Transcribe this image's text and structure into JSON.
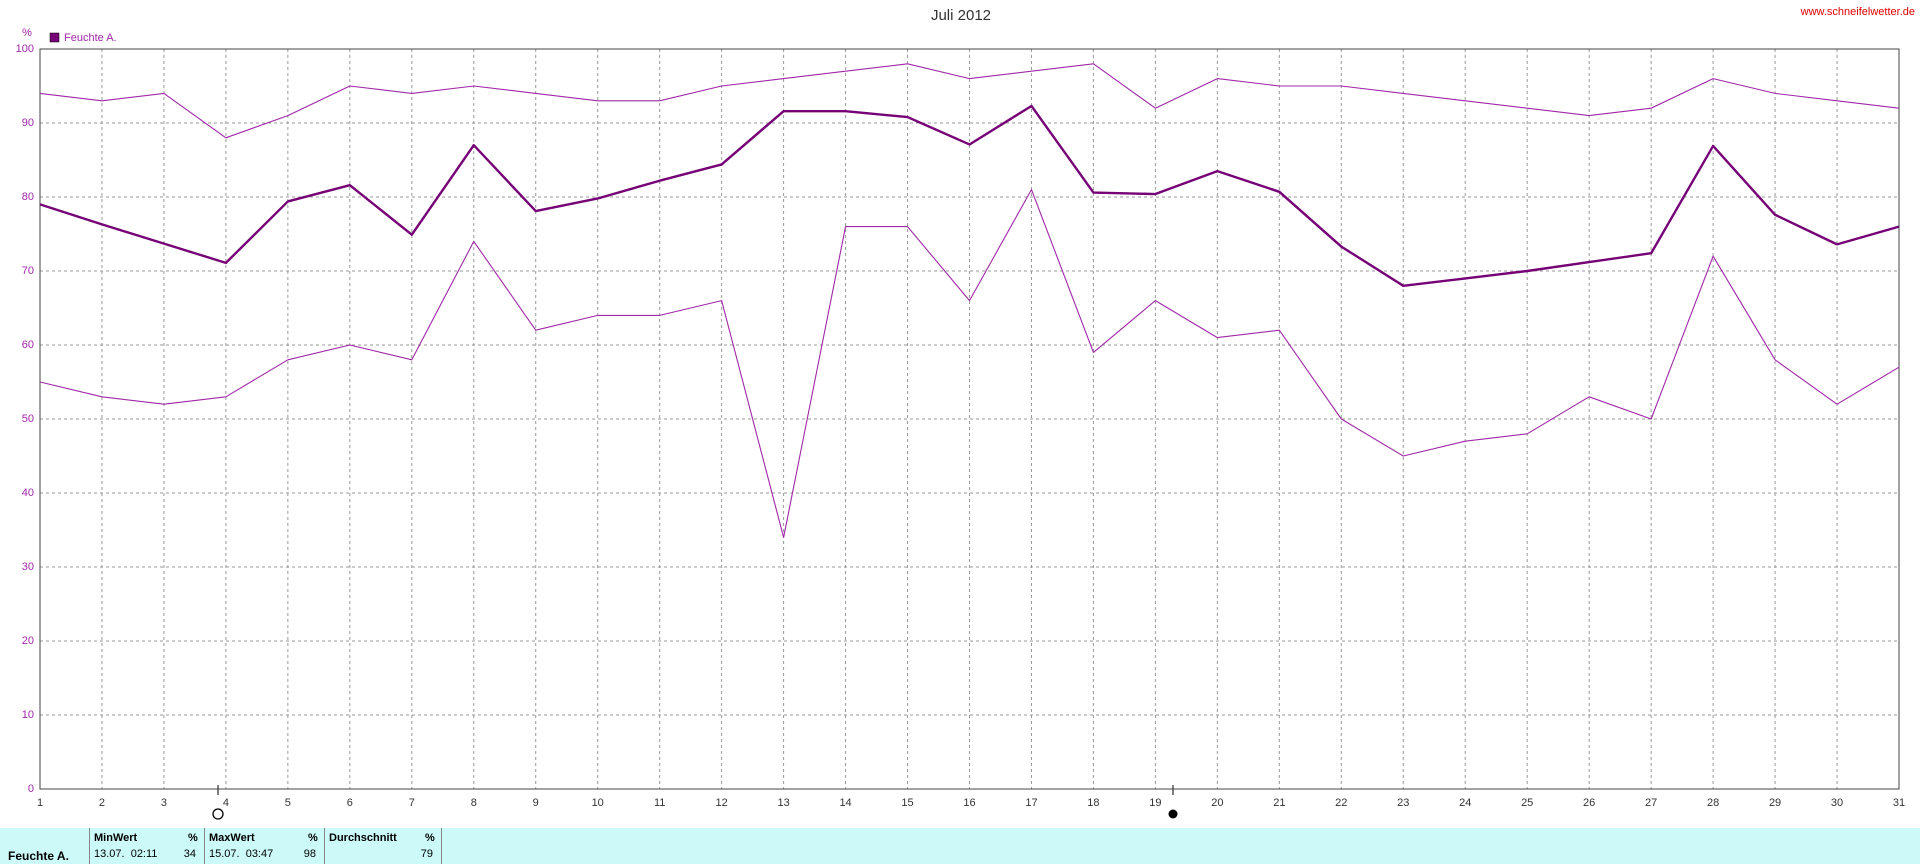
{
  "chart_data": {
    "type": "line",
    "title": "Juli 2012",
    "watermark": "www.schneifelwetter.de",
    "y_label": "%",
    "x": [
      1,
      2,
      3,
      4,
      5,
      6,
      7,
      8,
      9,
      10,
      11,
      12,
      13,
      14,
      15,
      16,
      17,
      18,
      19,
      20,
      21,
      22,
      23,
      24,
      25,
      26,
      27,
      28,
      29,
      30,
      31
    ],
    "xlim": [
      1,
      31
    ],
    "ylim": [
      0,
      100
    ],
    "yticks": [
      0,
      10,
      20,
      30,
      40,
      50,
      60,
      70,
      80,
      90,
      100
    ],
    "grid": true,
    "legend": "top-left",
    "series": [
      {
        "name": "Feuchte A.",
        "color": "#760076",
        "width": 2.4,
        "values": [
          79,
          76.3,
          73.7,
          71.1,
          79.4,
          81.6,
          74.9,
          87,
          78.1,
          79.8,
          82.2,
          84.4,
          91.6,
          91.6,
          90.8,
          87.1,
          92.3,
          80.6,
          80.4,
          83.5,
          80.7,
          73.3,
          68,
          69,
          70,
          71.2,
          72.4,
          86.9,
          77.6,
          73.6,
          76
        ]
      },
      {
        "color": "#a028a8",
        "width": 1.1,
        "values": [
          94,
          93,
          94,
          88,
          91,
          95,
          94,
          95,
          94,
          93,
          93,
          95,
          96,
          97,
          98,
          96,
          97,
          98,
          92,
          96,
          95,
          95,
          94,
          93,
          92,
          91,
          92,
          96,
          94,
          93,
          92
        ]
      },
      {
        "color": "#a028a8",
        "width": 1.1,
        "values": [
          55,
          53,
          52,
          53,
          58,
          60,
          58,
          74,
          62,
          64,
          64,
          66,
          34,
          76,
          76,
          66,
          81,
          59,
          66,
          61,
          62,
          50,
          45,
          47,
          48,
          53,
          50,
          72,
          58,
          52,
          57
        ]
      }
    ]
  },
  "table": {
    "row_label": "Feuchte A.",
    "columns": [
      {
        "header": "MinWert",
        "unit": "%",
        "time": "13.07.  02:11",
        "value": "34"
      },
      {
        "header": "MaxWert",
        "unit": "%",
        "time": "15.07.  03:47",
        "value": "98"
      },
      {
        "header": "Durchschnitt",
        "unit": "%",
        "time": "",
        "value": "79"
      }
    ]
  }
}
